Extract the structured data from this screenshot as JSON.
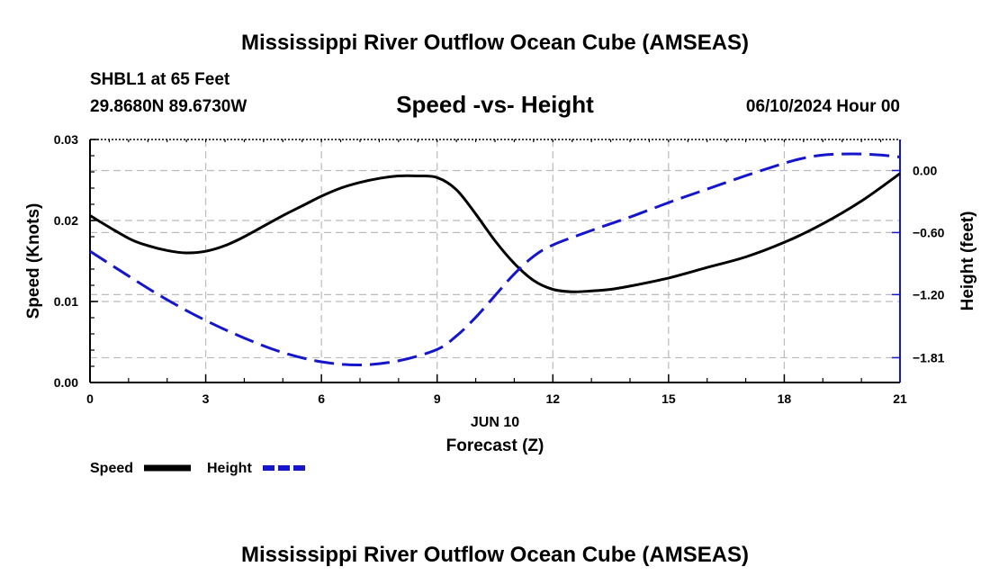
{
  "title": "Mississippi River Outflow Ocean Cube (AMSEAS)",
  "station": "SHBL1 at 65 Feet",
  "location": "29.8680N  89.6730W",
  "date": "06/10/2024 Hour 00",
  "footer_title": "Mississippi River Outflow Ocean Cube (AMSEAS)",
  "colors": {
    "speed": "#000000",
    "height": "#1515cc",
    "grid": "#bbbbbb"
  },
  "chart_data": {
    "type": "line",
    "title": "Speed -vs- Height",
    "xlabel": "Forecast (Z)",
    "xlabel_date": "JUN 10",
    "ylabel": "Speed (Knots)",
    "y2label": "Height (feet)",
    "xlim": [
      0,
      21
    ],
    "ylim": [
      0,
      0.03
    ],
    "y2lim": [
      -2.05,
      0.3
    ],
    "grid": true,
    "legend_position": "bottom-left",
    "x_ticks": [
      0,
      3,
      6,
      9,
      12,
      15,
      18,
      21
    ],
    "x_tick_labels": [
      "0",
      "3",
      "6",
      "9",
      "12",
      "15",
      "18",
      "21"
    ],
    "y_ticks": [
      0,
      0.01,
      0.02,
      0.03
    ],
    "y_tick_labels": [
      "0.00",
      "0.01",
      "0.02",
      "0.03"
    ],
    "y2_ticks": [
      0.0,
      -0.6,
      -1.2,
      -1.81
    ],
    "y2_tick_labels": [
      "0.00",
      "−0.60",
      "−1.20",
      "−1.81"
    ],
    "series": [
      {
        "name": "Speed",
        "axis": "left",
        "style": "solid",
        "x": [
          0,
          1,
          1.5,
          2,
          2.5,
          3,
          3.5,
          4,
          5,
          5.5,
          6,
          6.5,
          7,
          7.5,
          8,
          8.5,
          9,
          9.5,
          10,
          10.5,
          11,
          11.5,
          12,
          12.5,
          13,
          13.5,
          14,
          15,
          16,
          17,
          18,
          19,
          20,
          21
        ],
        "values": [
          0.0206,
          0.0178,
          0.0169,
          0.0163,
          0.016,
          0.0162,
          0.0169,
          0.018,
          0.0206,
          0.0218,
          0.023,
          0.024,
          0.0247,
          0.0252,
          0.0255,
          0.0255,
          0.0253,
          0.0238,
          0.0208,
          0.0175,
          0.0147,
          0.0126,
          0.0115,
          0.0112,
          0.0113,
          0.0115,
          0.0119,
          0.0129,
          0.0142,
          0.0155,
          0.0173,
          0.0196,
          0.0224,
          0.0258
        ]
      },
      {
        "name": "Height",
        "axis": "right",
        "style": "dashed",
        "x": [
          0,
          1,
          2,
          3,
          4,
          5,
          6,
          7,
          8,
          9,
          9.5,
          10,
          10.5,
          11,
          11.5,
          12,
          13,
          14,
          15,
          16,
          17,
          18,
          18.5,
          19,
          19.5,
          20,
          20.5,
          21
        ],
        "values": [
          -0.78,
          -1.02,
          -1.25,
          -1.45,
          -1.62,
          -1.76,
          -1.85,
          -1.88,
          -1.84,
          -1.73,
          -1.6,
          -1.42,
          -1.21,
          -1.0,
          -0.83,
          -0.72,
          -0.58,
          -0.45,
          -0.31,
          -0.18,
          -0.05,
          0.07,
          0.12,
          0.15,
          0.16,
          0.16,
          0.15,
          0.13
        ]
      }
    ]
  }
}
